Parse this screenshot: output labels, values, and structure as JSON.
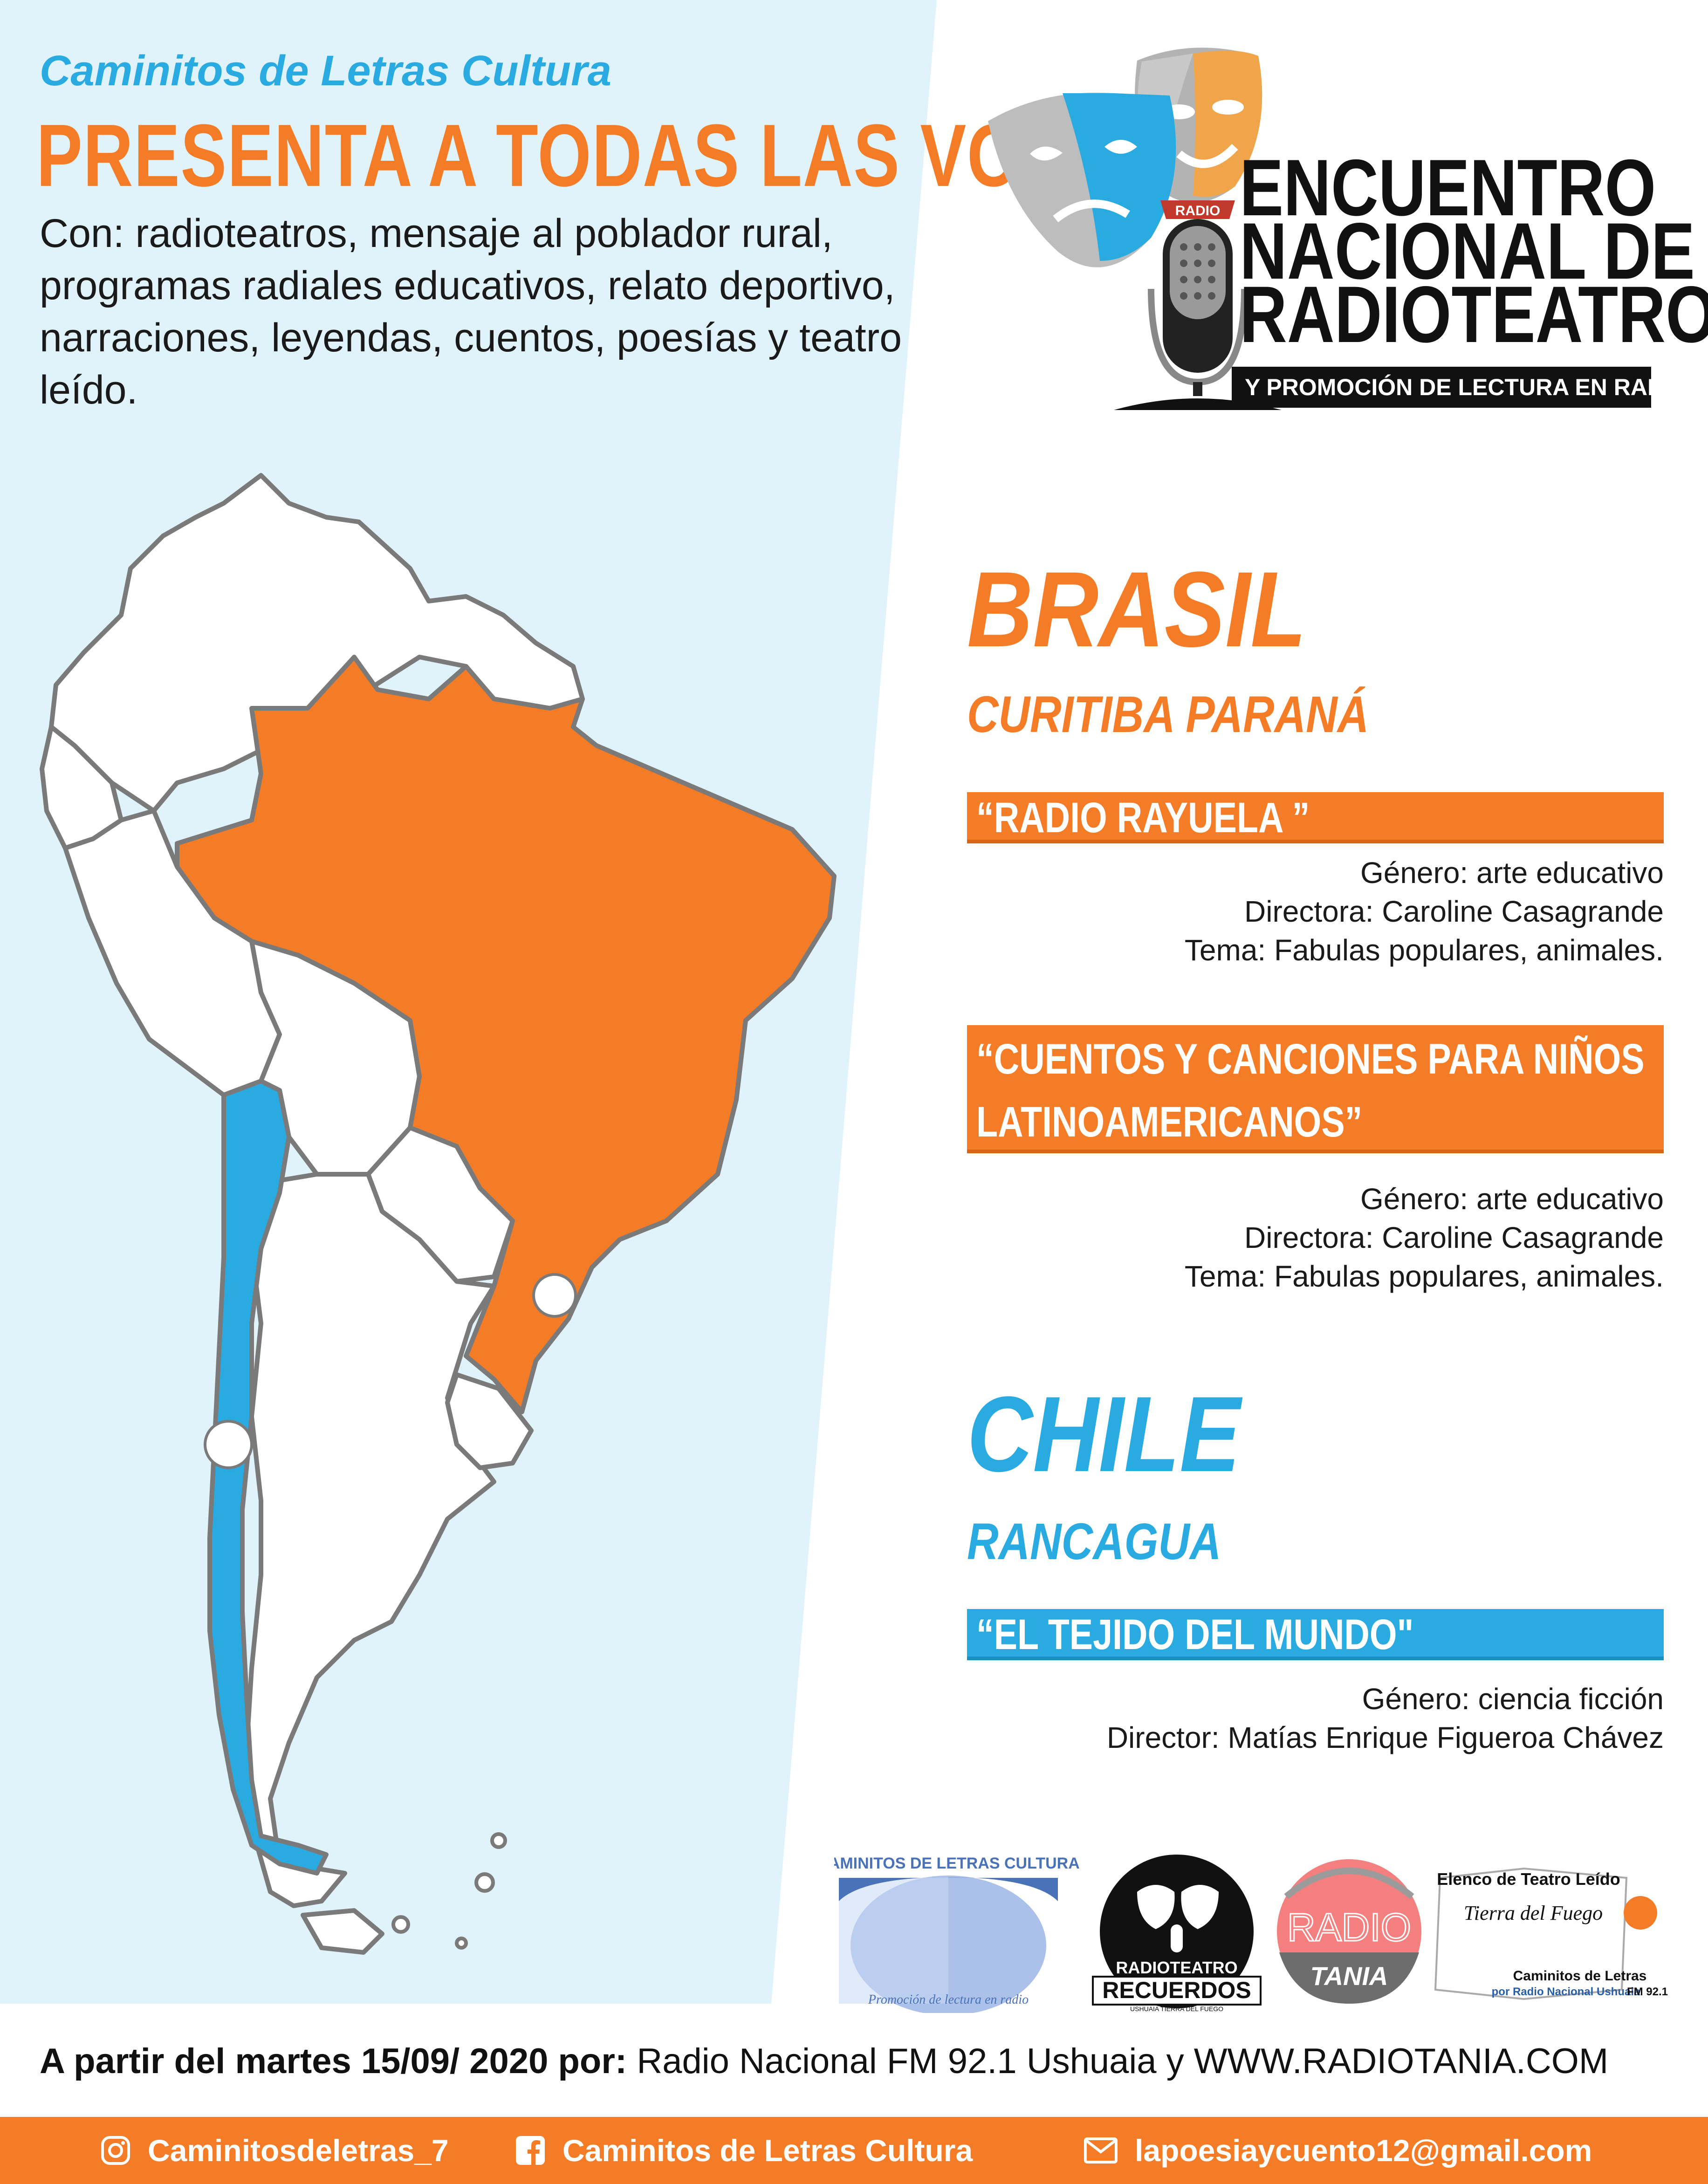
{
  "header": {
    "brand": "Caminitos de Letras Cultura",
    "headline": "PRESENTA A TODAS LAS VOCES",
    "intro": "Con: radioteatros, mensaje al poblador rural, programas radiales educativos, relato deportivo, narraciones, leyendas, cuentos, poesías y teatro leído."
  },
  "event": {
    "badge": "RADIO",
    "title_line1": "ENCUENTRO",
    "title_line2": "NACIONAL DE",
    "title_line3": "RADIOTEATRO",
    "subtitle": "Y PROMOCIÓN DE LECTURA EN RADIO"
  },
  "brasil": {
    "country": "BRASIL",
    "city": "CURITIBA PARANÁ",
    "programs": [
      {
        "title": "“RADIO RAYUELA ”",
        "genre": "Género: arte educativo",
        "director": "Directora: Caroline Casagrande",
        "theme": "Tema: Fabulas populares, animales."
      },
      {
        "title_line1": "“CUENTOS Y CANCIONES PARA NIÑOS",
        "title_line2": "LATINOAMERICANOS”",
        "genre": "Género: arte educativo",
        "director": "Directora: Caroline Casagrande",
        "theme": "Tema: Fabulas populares, animales."
      }
    ]
  },
  "chile": {
    "country": "CHILE",
    "city": "RANCAGUA",
    "programs": [
      {
        "title": "“EL TEJIDO DEL MUNDO\"",
        "genre": "Género: ciencia ficción",
        "director": "Director: Matías Enrique Figueroa Chávez"
      }
    ]
  },
  "partners": {
    "caminitos_title": "CAMINITOS DE LETRAS CULTURA",
    "caminitos_sub": "Promoción de lectura en radio",
    "recuerdos_top": "RADIOTEATRO",
    "recuerdos_main": "RECUERDOS",
    "recuerdos_sub": "USHUAIA TIERRA DEL FUEGO",
    "tania_top": "RADIO",
    "tania_main": "TANIA",
    "elenco_title": "Elenco de Teatro Leído",
    "elenco_script": "Tierra del Fuego",
    "elenco_sub1": "Caminitos de Letras",
    "elenco_sub2": "por Radio Nacional Ushuaia",
    "elenco_freq": "FM 92.1"
  },
  "footer": {
    "lead": "A partir del martes 15/09/ 2020 por:",
    "rest": " Radio Nacional FM 92.1 Ushuaia y WWW.RADIOTANIA.COM"
  },
  "social": {
    "instagram": "Caminitosdeletras_7",
    "facebook": "Caminitos de Letras Cultura",
    "email": "lapoesiaycuento12@gmail.com"
  },
  "colors": {
    "orange": "#f47c27",
    "blue": "#29abe2",
    "light_blue_bg": "#e0f3fa",
    "dark": "#111111"
  },
  "icons": [
    "theater-masks-icon",
    "microphone-icon",
    "instagram-icon",
    "facebook-icon",
    "mail-icon",
    "location-dot-icon"
  ]
}
